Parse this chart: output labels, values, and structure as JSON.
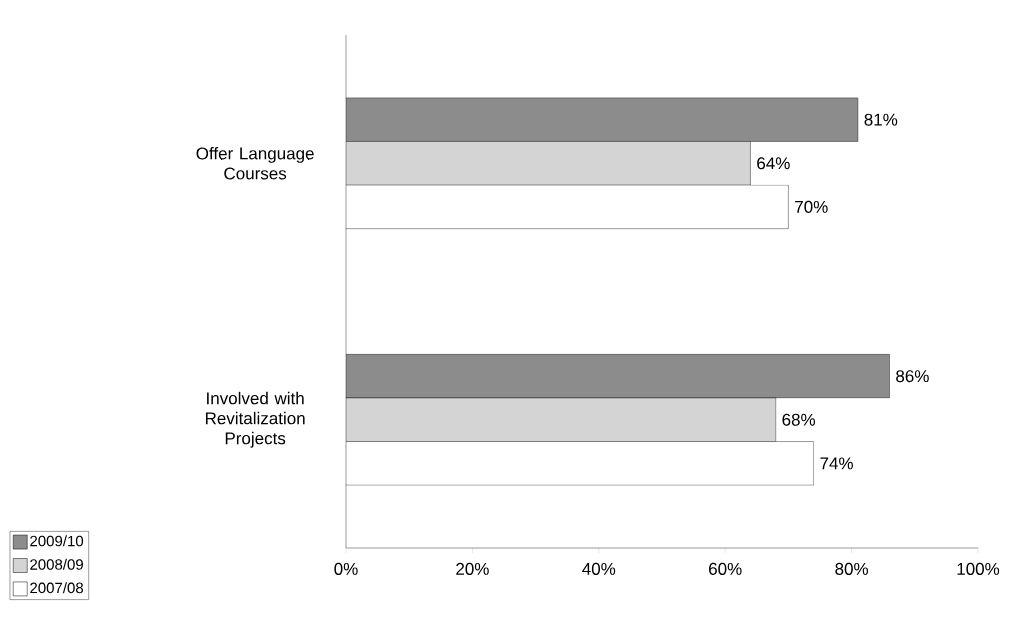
{
  "chart_data": {
    "type": "bar",
    "orientation": "horizontal",
    "categories": [
      "Offer Language Courses",
      "Involved with Revitalization Projects"
    ],
    "series": [
      {
        "name": "2009/10",
        "color": "#8c8c8c",
        "values": [
          81,
          86
        ],
        "value_labels": [
          "81%",
          "86%"
        ]
      },
      {
        "name": "2008/09",
        "color": "#d4d4d4",
        "values": [
          64,
          68
        ],
        "value_labels": [
          "64%",
          "68%"
        ]
      },
      {
        "name": "2007/08",
        "color": "#ffffff",
        "values": [
          70,
          74
        ],
        "value_labels": [
          "70%",
          "74%"
        ]
      }
    ],
    "xlim": [
      0,
      100
    ],
    "xticks": [
      {
        "value": 0,
        "label": "0%"
      },
      {
        "value": 20,
        "label": "20%"
      },
      {
        "value": 40,
        "label": "40%"
      },
      {
        "value": 60,
        "label": "60%"
      },
      {
        "value": 80,
        "label": "80%"
      },
      {
        "value": 100,
        "label": "100%"
      }
    ],
    "grid": false,
    "legend": "bottom left"
  }
}
